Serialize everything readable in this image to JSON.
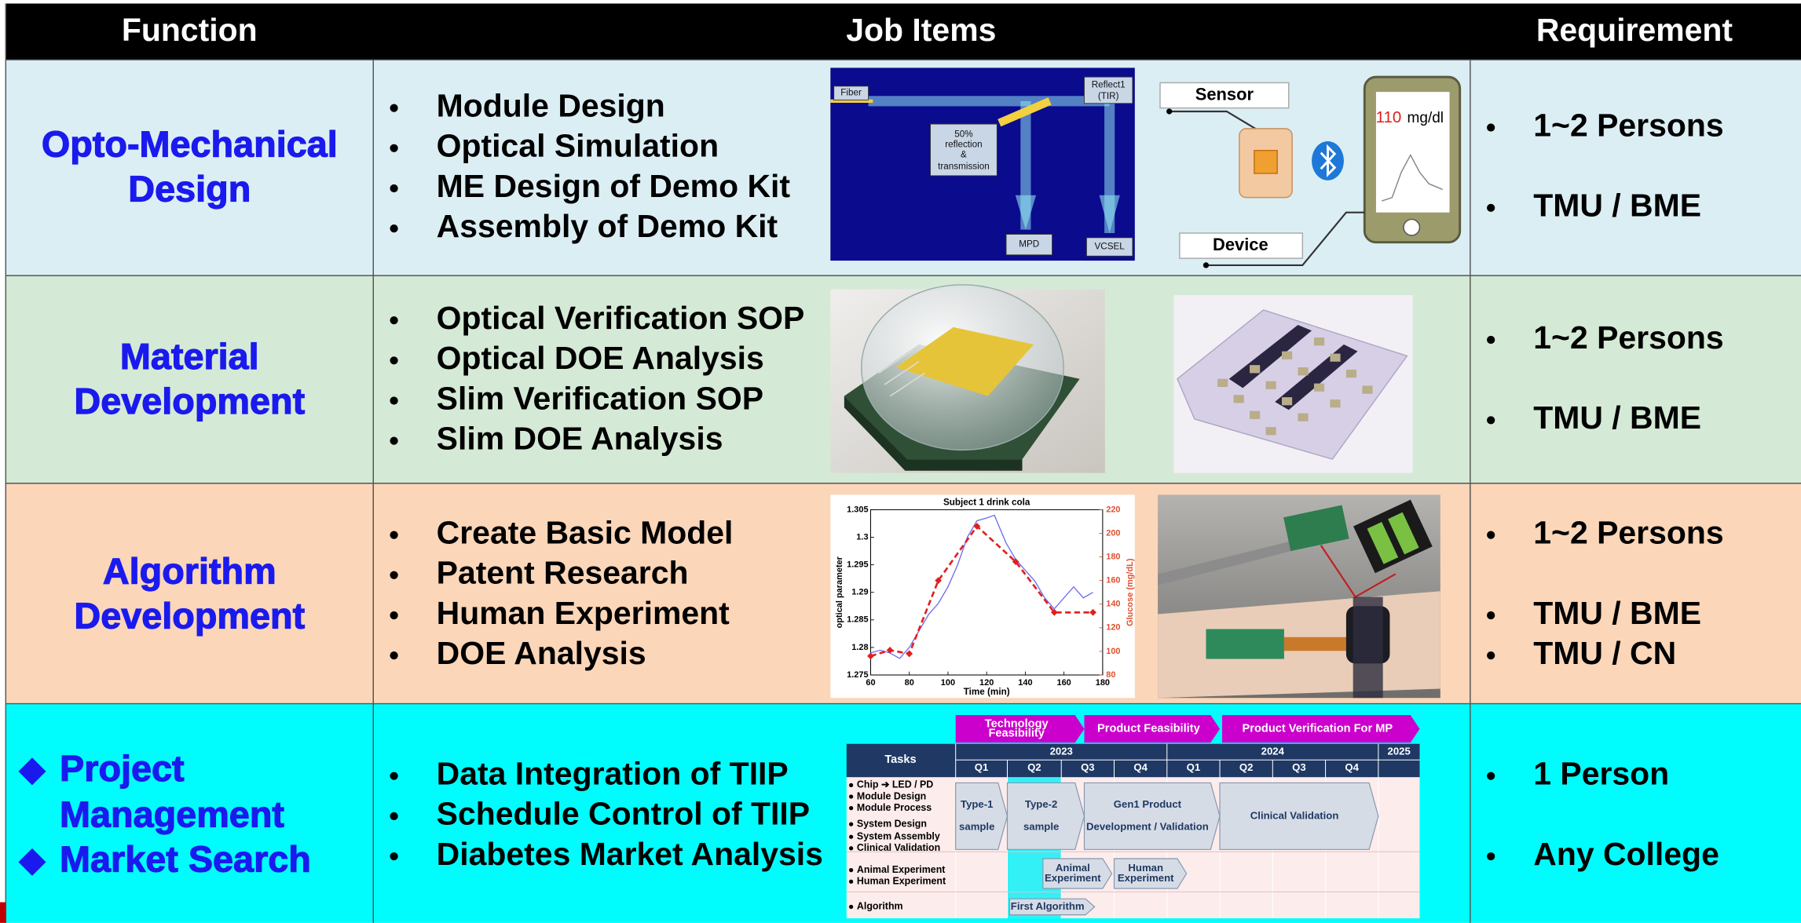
{
  "header": {
    "function": "Function",
    "job_items": "Job Items",
    "requirement": "Requirement"
  },
  "rows": [
    {
      "function": [
        "Opto-Mechanical",
        "Design"
      ],
      "job_items": [
        "Module Design",
        "Optical Simulation",
        "ME Design of Demo Kit",
        "Assembly of Demo Kit"
      ],
      "requirements": [
        "1~2 Persons",
        "TMU / BME"
      ],
      "optics_diagram": {
        "labels": [
          "Fiber",
          "Reflect1",
          "(TIR)",
          "50%",
          "reflection",
          "&",
          "transmission",
          "MPD",
          "VCSEL"
        ]
      },
      "sensor_diagram": {
        "sensor": "Sensor",
        "device": "Device",
        "reading": "110",
        "unit": "mg/dl"
      }
    },
    {
      "function": [
        "Material",
        "Development"
      ],
      "job_items": [
        "Optical Verification SOP",
        "Optical DOE Analysis",
        "Slim Verification SOP",
        "Slim DOE Analysis"
      ],
      "requirements": [
        "1~2 Persons",
        "TMU / BME"
      ]
    },
    {
      "function": [
        "Algorithm",
        "Development"
      ],
      "job_items": [
        "Create Basic Model",
        "Patent Research",
        "Human Experiment",
        "DOE Analysis"
      ],
      "requirements": [
        "1~2 Persons",
        "TMU / BME",
        "TMU / CN"
      ],
      "chart": {
        "type": "line",
        "title": "Subject 1 drink cola",
        "x_label": "Time (min)",
        "y_label": "optical parameter",
        "y2_label": "Glucose (mg/dL)",
        "xlim": [
          60,
          180
        ],
        "xticks": [
          60,
          80,
          100,
          120,
          140,
          160,
          180
        ],
        "ylim": [
          1.275,
          1.305
        ],
        "yticks": [
          1.275,
          1.28,
          1.285,
          1.29,
          1.295,
          1.3,
          1.305
        ],
        "y2lim": [
          80,
          220
        ],
        "y2ticks": [
          80,
          100,
          120,
          140,
          160,
          180,
          200,
          220
        ],
        "series": [
          {
            "color": "#6b6bf0",
            "x": [
              60,
              65,
              70,
              75,
              80,
              85,
              90,
              95,
              100,
              105,
              110,
              115,
              120,
              124,
              130,
              135,
              140,
              145,
              150,
              155,
              160,
              165,
              170,
              175
            ],
            "values": [
              1.279,
              1.2795,
              1.279,
              1.278,
              1.28,
              1.283,
              1.286,
              1.288,
              1.291,
              1.295,
              1.3,
              1.303,
              1.3035,
              1.304,
              1.299,
              1.296,
              1.294,
              1.292,
              1.289,
              1.287,
              1.289,
              1.291,
              1.289,
              1.29
            ]
          },
          {
            "color": "#e02020",
            "axis": "y2",
            "x": [
              60,
              70,
              80,
              95,
              115,
              135,
              155,
              175
            ],
            "values": [
              96,
              101,
              98,
              160,
              206,
              176,
              133,
              133
            ]
          }
        ]
      }
    },
    {
      "function": [
        "Project",
        "Management",
        "Market Search"
      ],
      "job_items": [
        "Data Integration of TIIP",
        "Schedule Control of TIIP",
        "Diabetes Market Analysis"
      ],
      "requirements": [
        "1 Person",
        "Any College"
      ],
      "gantt": {
        "phases": [
          [
            "Technology",
            "Feasibility"
          ],
          [
            "Product Feasibility"
          ],
          [
            "Product Verification For MP"
          ]
        ],
        "tasks_header": "Tasks",
        "years": [
          "2023",
          "2024",
          "2025"
        ],
        "quarters": [
          "Q1",
          "Q2",
          "Q3",
          "Q4",
          "Q1",
          "Q2",
          "Q3",
          "Q4"
        ],
        "task_groups": [
          [
            "Chip ➔ LED / PD",
            "Module Design",
            "Module Process"
          ],
          [
            "System Design",
            "System Assembly",
            "Clinical Validation"
          ],
          [
            "Animal Experiment",
            "Human Experiment"
          ],
          [
            "Algorithm"
          ]
        ],
        "bars": [
          [
            "Type-1",
            "sample"
          ],
          [
            "Type-2",
            "sample"
          ],
          [
            "Gen1 Product",
            "Development / Validation"
          ],
          [
            "Clinical Validation"
          ],
          [
            "Animal",
            "Experiment"
          ],
          [
            "Human",
            "Experiment"
          ],
          [
            "First Algorithm"
          ]
        ]
      }
    }
  ]
}
